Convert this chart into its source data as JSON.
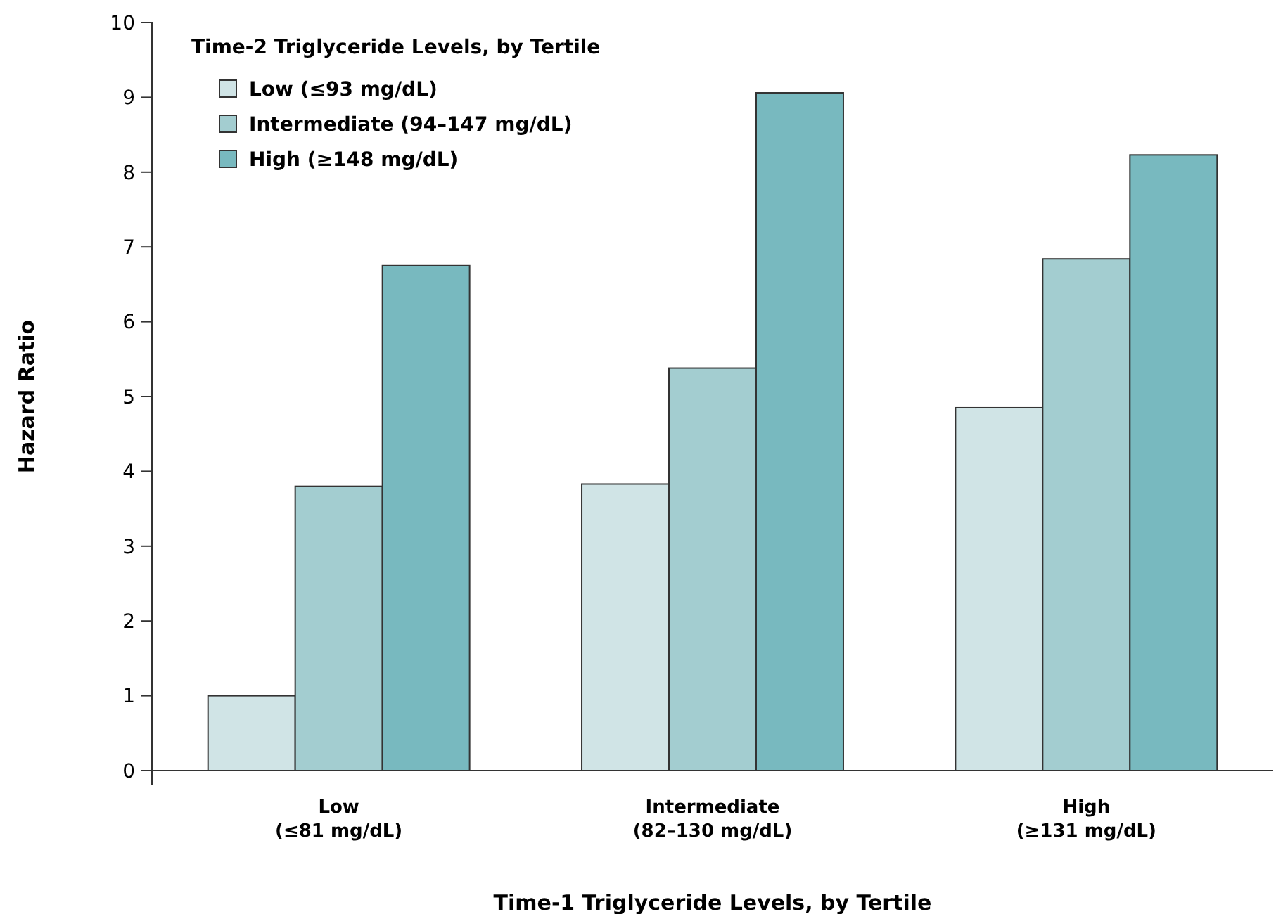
{
  "chart_data": {
    "type": "bar",
    "xlabel": "Time-1 Triglyceride Levels, by Tertile",
    "ylabel": "Hazard Ratio",
    "legend_title": "Time-2 Triglyceride Levels, by Tertile",
    "legend": "top left",
    "grid": false,
    "categories": [
      "Low\n(≤81 mg/dL)",
      "Intermediate\n(82–130 mg/dL)",
      "High\n(≥131 mg/dL)"
    ],
    "series": [
      {
        "name": "Low (≤93 mg/dL)",
        "color": "#d0e4e6",
        "values": [
          1.0,
          3.83,
          4.85
        ]
      },
      {
        "name": "Intermediate (94–147 mg/dL)",
        "color": "#a3cdd0",
        "values": [
          3.8,
          5.38,
          6.84
        ]
      },
      {
        "name": "High (≥148 mg/dL)",
        "color": "#78b9bf",
        "values": [
          6.75,
          9.06,
          8.23
        ]
      }
    ],
    "ylim": [
      0,
      10
    ],
    "yticks": [
      0,
      1,
      2,
      3,
      4,
      5,
      6,
      7,
      8,
      9,
      10
    ]
  }
}
